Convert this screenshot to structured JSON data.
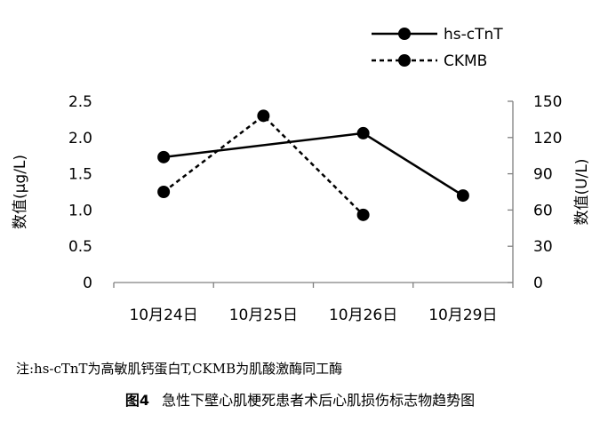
{
  "chart_data": {
    "type": "line",
    "categories": [
      "10月24日",
      "10月25日",
      "10月26日",
      "10月29日"
    ],
    "series": [
      {
        "name": "hs-cTnT",
        "axis": "left",
        "line_style": "solid",
        "color": "#000000",
        "points": [
          {
            "category": "10月24日",
            "value": 1.73
          },
          {
            "category": "10月26日",
            "value": 2.06
          },
          {
            "category": "10月29日",
            "value": 1.2
          }
        ]
      },
      {
        "name": "CKMB",
        "axis": "right",
        "line_style": "dashed",
        "color": "#000000",
        "points": [
          {
            "category": "10月24日",
            "value": 75
          },
          {
            "category": "10月25日",
            "value": 138
          },
          {
            "category": "10月26日",
            "value": 56
          }
        ]
      }
    ],
    "y_left": {
      "label": "数值(μg/L)",
      "ylim": [
        0,
        2.5
      ],
      "ticks": [
        "0",
        "0.5",
        "1.0",
        "1.5",
        "2.0",
        "2.5"
      ]
    },
    "y_right": {
      "label": "数值(U/L)",
      "ylim": [
        0,
        150
      ],
      "ticks": [
        "0",
        "30",
        "60",
        "90",
        "120",
        "150"
      ]
    },
    "legend_position": "top-right",
    "grid": false
  },
  "note": "注:hs-cTnT为高敏肌钙蛋白T,CKMB为肌酸激酶同工酶",
  "caption": {
    "number": "图4",
    "text": "急性下壁心肌梗死患者术后心肌损伤标志物趋势图"
  }
}
